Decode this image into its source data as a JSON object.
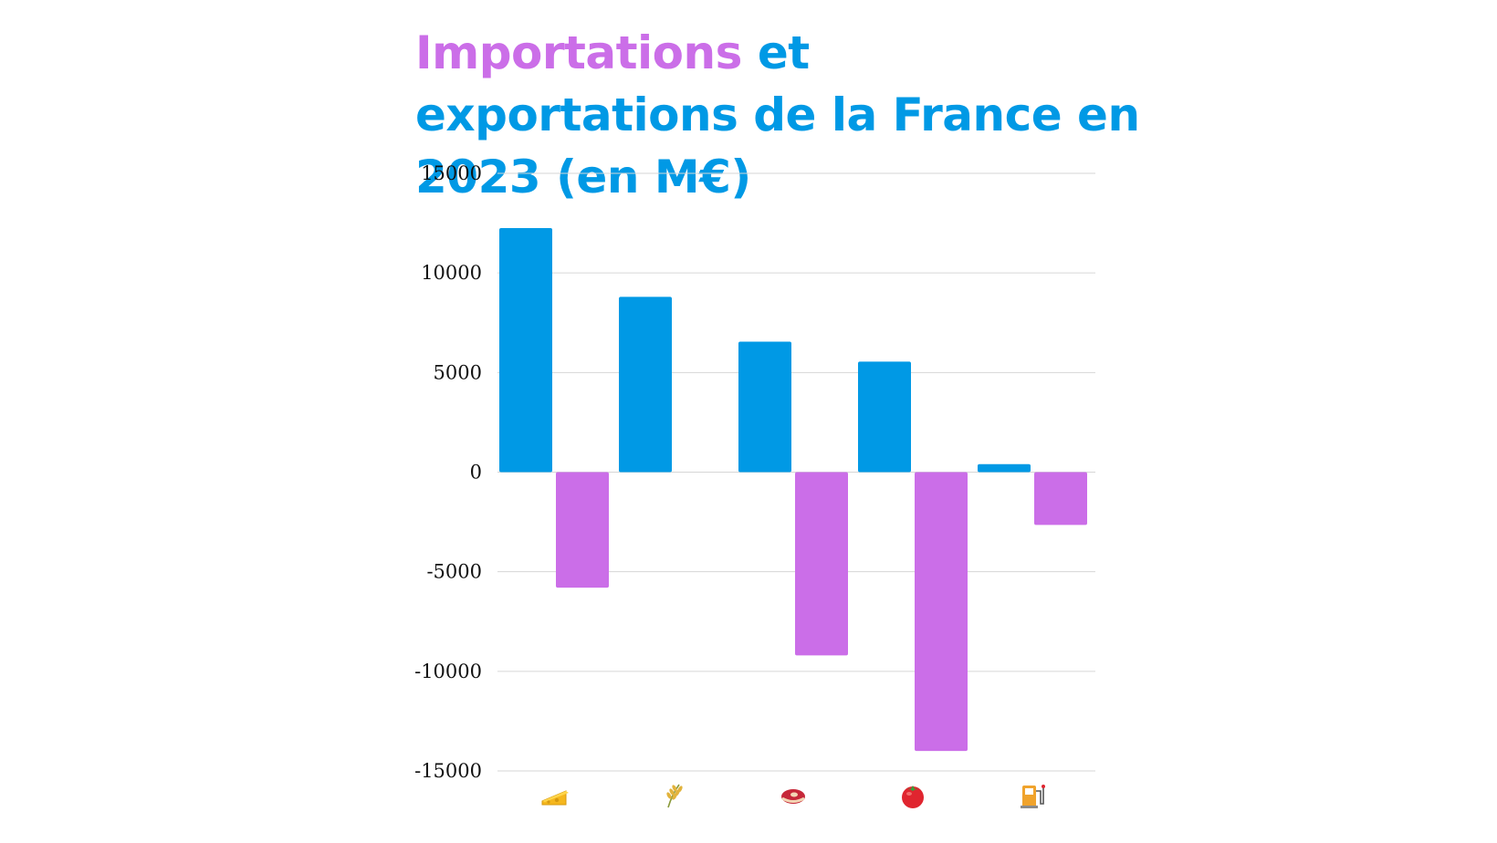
{
  "chart_data": {
    "type": "bar",
    "title_parts": {
      "imports_word": "Importations",
      "rest": "et exportations de la France en 2023 (en M€)"
    },
    "categories": [
      "cheese-icon",
      "wheat-icon",
      "meat-icon",
      "tomato-icon",
      "fuel-pump-icon"
    ],
    "series": [
      {
        "key": "exports",
        "color": "#0099e5",
        "values": [
          12250,
          8800,
          6550,
          5550,
          400
        ]
      },
      {
        "key": "imports",
        "color": "#cb6ee8",
        "values": [
          -5800,
          0,
          -9200,
          -14000,
          -2650
        ]
      }
    ],
    "y_ticks": [
      "15000",
      "10000",
      "5000",
      "0",
      "-5000",
      "-10000",
      "-15000"
    ],
    "ylim": [
      -15000,
      15000
    ],
    "grid": true,
    "xlabel": "",
    "ylabel": ""
  },
  "colors": {
    "imports": "#cb6ee8",
    "exports": "#0099e5",
    "grid": "#d6d6d6"
  }
}
